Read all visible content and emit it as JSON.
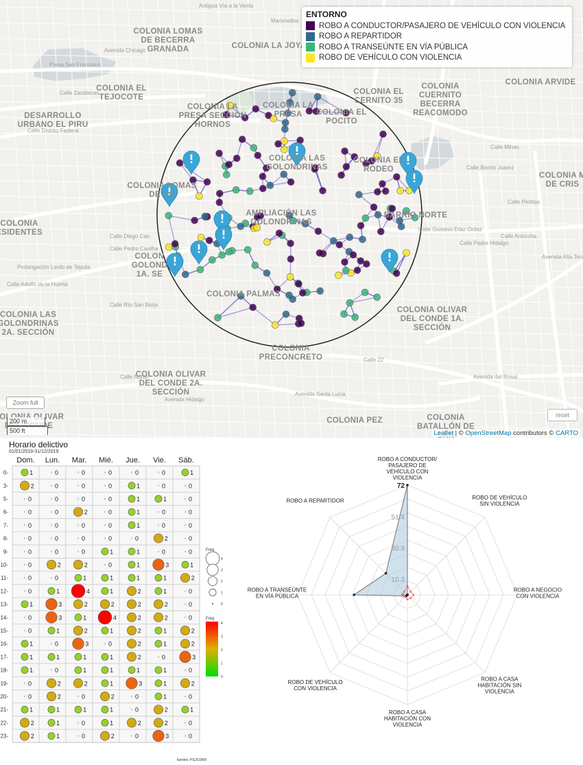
{
  "map": {
    "legend": {
      "title": "ENTORNO",
      "items": [
        {
          "label": "ROBO A CONDUCTOR/PASAJERO DE VEHÍCULO CON VIOLENCIA",
          "color": "#440154"
        },
        {
          "label": "ROBO A REPARTIDOR",
          "color": "#31688e"
        },
        {
          "label": "ROBO A TRANSEÚNTE EN VÍA PÚBLICA",
          "color": "#35b779"
        },
        {
          "label": "ROBO DE VEHÍCULO CON VIOLENCIA",
          "color": "#fde725"
        }
      ]
    },
    "neighborhoods": [
      {
        "name": "COLONIA LOMAS DE BECERRA GRANADA",
        "lines": [
          "COLONIA LOMAS",
          "DE BECERRA",
          "GRANADA"
        ]
      },
      {
        "name": "COLONIA LA JOYA",
        "lines": [
          "COLONIA LA JOYA"
        ]
      },
      {
        "name": "COLONIA EL TEJOCOTE",
        "lines": [
          "COLONIA EL",
          "TEJOCOTE"
        ]
      },
      {
        "name": "COLONIA LA PRESA SECCIÓN HORNOS",
        "lines": [
          "COLONIA LA",
          "PRESA SECCIÓN",
          "HORNOS"
        ]
      },
      {
        "name": "COLONIA LA PRESA",
        "lines": [
          "COLONIA LA",
          "PRESA"
        ]
      },
      {
        "name": "COLONIA EL POCITO",
        "lines": [
          "COLONIA EL",
          "POCITO"
        ]
      },
      {
        "name": "COLONIA EL CERNITO 35",
        "lines": [
          "COLONIA EL",
          "CERNITO 35"
        ]
      },
      {
        "name": "COLONIA CUERNITO BECERRA REACOMODO",
        "lines": [
          "COLONIA",
          "CUERNITO",
          "BECERRA",
          "REACOMODO"
        ]
      },
      {
        "name": "COLONIA ARVIDE",
        "lines": [
          "COLONIA ARVIDE"
        ]
      },
      {
        "name": "DESARROLLO URBANO EL PIRU",
        "lines": [
          "DESARROLLO",
          "URBANO EL PIRU"
        ]
      },
      {
        "name": "COLONIA LAS GOLONDRINAS",
        "lines": [
          "COLONIA LAS",
          "GOLONDRINAS"
        ]
      },
      {
        "name": "COLONIA EL RODEO",
        "lines": [
          "COLONIA EL",
          "RODEO"
        ]
      },
      {
        "name": "COLONIA LOMAS DE CAPULA",
        "lines": [
          "COLONIA LOMAS",
          "DE CA"
        ]
      },
      {
        "name": "AMPLIACIÓN LAS GOLONDRINAS",
        "lines": [
          "AMPLIACIÓN LAS",
          "GOLONDRINAS"
        ]
      },
      {
        "name": "BARRIO NORTE",
        "lines": [
          "BARRIO NORTE"
        ]
      },
      {
        "name": "COLONIA M DE CRIS",
        "lines": [
          "COLONIA M",
          "DE CRIS"
        ]
      },
      {
        "name": "COLONIA RESIDENTES",
        "lines": [
          "COLONIA",
          "ESIDENTES"
        ]
      },
      {
        "name": "COLONIA GOLONDRINAS 1A. SECCIÓN",
        "lines": [
          "COLON",
          "GOLOND",
          "1A. SE"
        ]
      },
      {
        "name": "COLONIA PALMAS",
        "lines": [
          "COLONIA PALMAS"
        ]
      },
      {
        "name": "COLONIA LAS GOLONDRINAS 2A. SECCIÓN",
        "lines": [
          "COLONIA LAS",
          "GOLONDRINAS",
          "2A. SECCIÓN"
        ]
      },
      {
        "name": "COLONIA OLIVAR DEL CONDE 1A. SECCIÓN",
        "lines": [
          "COLONIA OLIVAR",
          "DEL CONDE 1A.",
          "SECCIÓN"
        ]
      },
      {
        "name": "COLONIA PRECONCRETO",
        "lines": [
          "COLONIA",
          "PRECONCRETO"
        ]
      },
      {
        "name": "COLONIA OLIVAR DEL CONDE 2A. SECCIÓN",
        "lines": [
          "COLONIA OLIVAR",
          "DEL CONDE 2A.",
          "SECCIÓN"
        ]
      },
      {
        "name": "COLONIA PEZ",
        "lines": [
          "COLONIA PEZ"
        ]
      },
      {
        "name": "COLONIA BATALLÓN DE SAN",
        "lines": [
          "COLONIA",
          "BATALLÓN DE",
          "SAN"
        ]
      },
      {
        "name": "COLONIA OLIVAR DEL CONDE",
        "lines": [
          "COLONIA OLIVAR",
          "DEL CONDE"
        ]
      }
    ],
    "streets": [
      "Antigua Vía a la Venta",
      "Marisnellos",
      "Avenida Chicago",
      "Presa San Francisco",
      "Calle Zacatecas",
      "Calle Distrito Federal",
      "Calle Minas",
      "Calle Benito Juarez",
      "Calle Diego Cao",
      "Calle Pedro Cavilha",
      "Prolongación Lerdo de Tejada",
      "Calle Adolfo de la Huerta",
      "Calle Río San Borja",
      "Calle Norte",
      "Avenida Hidalgo",
      "Avenida Santa Lucía",
      "Avenida del Rosal",
      "Calle 22",
      "Avenida Alta Tensión",
      "Calle Padre Hidalgo",
      "Calle Antorcha",
      "Calle Gustavo Díaz Ordaz",
      "Calle Perlitas"
    ],
    "zoom_full": "Zoom full",
    "scale_m": "200 m",
    "scale_ft": "500 ft",
    "reset": "reset",
    "attribution": {
      "prefix": "Leaflet",
      "osm": "OpenStreetMap",
      "mid": " contributors © ",
      "carto": "CARTO",
      "sep": " | © "
    }
  },
  "heatmap": {
    "title": "Horario delictivo",
    "subtitle": "01/01/2019-31/12/2019",
    "days": [
      "Dom.",
      "Lun.",
      "Mar.",
      "Mié.",
      "Jue.",
      "Vie.",
      "Sáb."
    ],
    "hours": [
      "0",
      "3",
      "5",
      "6",
      "7",
      "8",
      "9",
      "10",
      "11",
      "12",
      "13",
      "14",
      "15",
      "16",
      "17",
      "18",
      "19",
      "20",
      "21",
      "22",
      "23"
    ],
    "values": [
      [
        1,
        0,
        0,
        0,
        0,
        0,
        1
      ],
      [
        2,
        0,
        0,
        0,
        1,
        0,
        0
      ],
      [
        0,
        0,
        0,
        0,
        1,
        1,
        0
      ],
      [
        0,
        0,
        2,
        0,
        1,
        0,
        0
      ],
      [
        0,
        0,
        0,
        0,
        1,
        0,
        0
      ],
      [
        0,
        0,
        0,
        0,
        0,
        2,
        0
      ],
      [
        0,
        0,
        0,
        1,
        1,
        0,
        0
      ],
      [
        0,
        2,
        2,
        0,
        1,
        3,
        1
      ],
      [
        0,
        0,
        1,
        1,
        1,
        1,
        2
      ],
      [
        0,
        1,
        4,
        1,
        2,
        1,
        0
      ],
      [
        1,
        3,
        2,
        2,
        2,
        2,
        0
      ],
      [
        0,
        3,
        1,
        4,
        2,
        2,
        0
      ],
      [
        0,
        1,
        2,
        1,
        2,
        1,
        2
      ],
      [
        1,
        0,
        3,
        0,
        2,
        1,
        2
      ],
      [
        1,
        1,
        1,
        1,
        2,
        0,
        3
      ],
      [
        1,
        0,
        1,
        1,
        1,
        1,
        0
      ],
      [
        0,
        2,
        2,
        1,
        3,
        1,
        2
      ],
      [
        0,
        2,
        0,
        2,
        0,
        1,
        0
      ],
      [
        1,
        1,
        1,
        1,
        0,
        2,
        1
      ],
      [
        2,
        1,
        0,
        1,
        2,
        2,
        0
      ],
      [
        2,
        1,
        0,
        2,
        0,
        3,
        0
      ]
    ],
    "size_legend": {
      "title": "Freq",
      "levels": [
        "4",
        "3",
        "2",
        "1",
        "0"
      ]
    },
    "color_legend": {
      "title": "Freq",
      "ticks": [
        "4",
        "3",
        "2",
        "1",
        "0"
      ],
      "low_color": "#00dd00",
      "mid_color": "#e0b000",
      "high_color": "#ff0000"
    },
    "source": "fuentes: PGJCDMX"
  },
  "chart_data": {
    "type": "radar",
    "axes": [
      "ROBO A CONDUCTOR/ PASAJERO DE VEHÍCULO CON VIOLENCIA",
      "ROBO DE VEHÍCULO SIN VIOLENCIA",
      "ROBO A NEGOCIO CON VIOLENCIA",
      "ROBO A CASA HABITACIÓN SIN VIOLENCIA",
      "ROBO A CASA HABITACIÓN CON VIOLENCIA",
      "ROBO DE VEHÍCULO CON VIOLENCIA",
      "ROBO A TRANSEÚNTE EN VÍA PÚBLICA",
      "ROBO A REPARTIDOR"
    ],
    "axis_label_lines": [
      [
        "ROBO A CONDUCTOR/",
        "PASAJERO DE",
        "VEHÍCULO CON",
        "VIOLENCIA"
      ],
      [
        "ROBO DE VEHÍCULO",
        "SIN VIOLENCIA"
      ],
      [
        "ROBO A NEGOCIO",
        "CON VIOLENCIA"
      ],
      [
        "ROBO A CASA",
        "HABITACIÓN SIN",
        "VIOLENCIA"
      ],
      [
        "ROBO A CASA",
        "HABITACIÓN CON",
        "VIOLENCIA"
      ],
      [
        "ROBO DE VEHÍCULO",
        "CON VIOLENCIA"
      ],
      [
        "ROBO A TRANSEÚNTE",
        "EN VÍA PÚBLICA"
      ],
      [
        "ROBO A REPARTIDOR"
      ]
    ],
    "ticks": [
      "0",
      "10.3",
      "30.9",
      "51.4",
      "72"
    ],
    "rmax": 72,
    "series": [
      {
        "values": [
          72,
          0,
          0,
          0,
          0,
          1,
          35,
          20
        ],
        "color": "#a8c8dc"
      },
      {
        "values": [
          6,
          3,
          4,
          3,
          3,
          2,
          3,
          3
        ],
        "color": "#ff5a5a"
      }
    ]
  }
}
